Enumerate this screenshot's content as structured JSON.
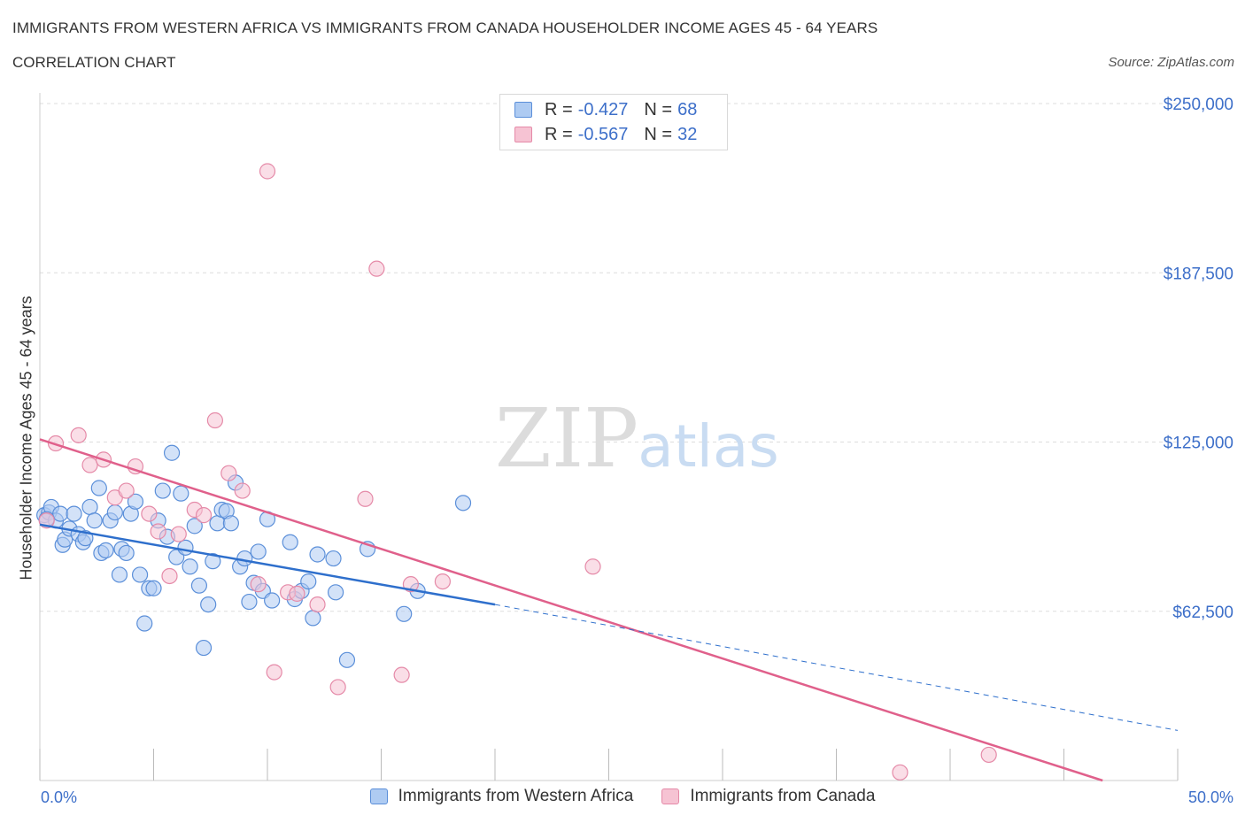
{
  "title": "IMMIGRANTS FROM WESTERN AFRICA VS IMMIGRANTS FROM CANADA HOUSEHOLDER INCOME AGES 45 - 64 YEARS",
  "subtitle": "CORRELATION CHART",
  "source": "Source: ZipAtlas.com",
  "watermark": {
    "zip": "ZIP",
    "atlas": "atlas"
  },
  "legend_stats": [
    {
      "r_label": "R =",
      "r_value": "-0.427",
      "n_label": "N =",
      "n_value": "68"
    },
    {
      "r_label": "R =",
      "r_value": "-0.567",
      "n_label": "N =",
      "n_value": "32"
    }
  ],
  "colors": {
    "blue_fill": "#aecbf2",
    "blue_stroke": "#5b8fd9",
    "blue_line": "#2e6fcc",
    "pink_fill": "#f6c3d3",
    "pink_stroke": "#e58aa8",
    "pink_line": "#e0608b",
    "tick_label": "#3d6fc9",
    "grid": "#dddddd"
  },
  "chart_data": {
    "type": "scatter",
    "title": "IMMIGRANTS FROM WESTERN AFRICA VS IMMIGRANTS FROM CANADA HOUSEHOLDER INCOME AGES 45 - 64 YEARS",
    "xlabel": "",
    "ylabel": "Householder Income Ages 45 - 64 years",
    "xlim": [
      0,
      50
    ],
    "ylim": [
      0,
      250000
    ],
    "x_tick_labels": [
      "0.0%",
      "50.0%"
    ],
    "y_ticks": [
      62500,
      125000,
      187500,
      250000
    ],
    "y_tick_labels": [
      "$62,500",
      "$125,000",
      "$187,500",
      "$250,000"
    ],
    "grid": true,
    "legend_position": "top-center",
    "series": [
      {
        "name": "Immigrants from Western Africa",
        "r": -0.427,
        "n": 68,
        "trend": {
          "x0": 0,
          "y0": 94500,
          "x1": 20,
          "y1": 65000,
          "dash_to_x": 50,
          "dash_to_y": 18500
        },
        "points": [
          [
            0.2,
            98000
          ],
          [
            0.4,
            99000
          ],
          [
            0.5,
            101000
          ],
          [
            0.7,
            96000
          ],
          [
            0.9,
            98500
          ],
          [
            1.0,
            87000
          ],
          [
            1.1,
            89000
          ],
          [
            1.3,
            93000
          ],
          [
            1.5,
            98500
          ],
          [
            1.7,
            91000
          ],
          [
            1.9,
            88000
          ],
          [
            2.0,
            89500
          ],
          [
            2.2,
            101000
          ],
          [
            2.4,
            96000
          ],
          [
            2.6,
            108000
          ],
          [
            2.7,
            84000
          ],
          [
            2.9,
            85000
          ],
          [
            3.1,
            96000
          ],
          [
            3.3,
            99000
          ],
          [
            3.5,
            76000
          ],
          [
            3.6,
            85500
          ],
          [
            3.8,
            84000
          ],
          [
            4.0,
            98500
          ],
          [
            4.2,
            103000
          ],
          [
            4.4,
            76000
          ],
          [
            4.6,
            58000
          ],
          [
            4.8,
            71000
          ],
          [
            5.0,
            71000
          ],
          [
            5.2,
            96000
          ],
          [
            5.4,
            107000
          ],
          [
            5.6,
            90000
          ],
          [
            5.8,
            121000
          ],
          [
            6.0,
            82500
          ],
          [
            6.2,
            106000
          ],
          [
            6.4,
            86000
          ],
          [
            6.6,
            79000
          ],
          [
            6.8,
            94000
          ],
          [
            7.0,
            72000
          ],
          [
            7.2,
            49000
          ],
          [
            7.4,
            65000
          ],
          [
            7.6,
            81000
          ],
          [
            7.8,
            95000
          ],
          [
            8.0,
            100000
          ],
          [
            8.2,
            99500
          ],
          [
            8.4,
            95000
          ],
          [
            8.6,
            110000
          ],
          [
            8.8,
            79000
          ],
          [
            9.0,
            82000
          ],
          [
            9.2,
            66000
          ],
          [
            9.4,
            73000
          ],
          [
            9.6,
            84500
          ],
          [
            9.8,
            70000
          ],
          [
            10.0,
            96500
          ],
          [
            10.2,
            66500
          ],
          [
            11.0,
            88000
          ],
          [
            11.2,
            67000
          ],
          [
            11.5,
            70000
          ],
          [
            11.8,
            73500
          ],
          [
            12.0,
            60000
          ],
          [
            12.2,
            83500
          ],
          [
            12.9,
            82000
          ],
          [
            13.0,
            69500
          ],
          [
            13.5,
            44500
          ],
          [
            14.4,
            85500
          ],
          [
            16.0,
            61500
          ],
          [
            16.6,
            70000
          ],
          [
            18.6,
            102500
          ],
          [
            0.3,
            96500
          ]
        ]
      },
      {
        "name": "Immigrants from Canada",
        "r": -0.567,
        "n": 32,
        "trend": {
          "x0": 0,
          "y0": 126000,
          "x1": 46.7,
          "y1": 0
        },
        "points": [
          [
            0.3,
            96000
          ],
          [
            0.7,
            124500
          ],
          [
            1.7,
            127500
          ],
          [
            2.2,
            116500
          ],
          [
            2.8,
            118500
          ],
          [
            3.3,
            104500
          ],
          [
            3.8,
            107000
          ],
          [
            4.2,
            116000
          ],
          [
            4.8,
            98500
          ],
          [
            5.2,
            92000
          ],
          [
            5.7,
            75500
          ],
          [
            6.1,
            91000
          ],
          [
            6.8,
            100000
          ],
          [
            7.2,
            98000
          ],
          [
            7.7,
            133000
          ],
          [
            8.3,
            113500
          ],
          [
            8.9,
            107000
          ],
          [
            9.6,
            72500
          ],
          [
            10.0,
            225000
          ],
          [
            10.3,
            40000
          ],
          [
            10.9,
            69500
          ],
          [
            11.3,
            69000
          ],
          [
            12.2,
            65000
          ],
          [
            13.1,
            34500
          ],
          [
            14.3,
            104000
          ],
          [
            14.8,
            189000
          ],
          [
            15.9,
            39000
          ],
          [
            16.3,
            72500
          ],
          [
            17.7,
            73500
          ],
          [
            24.3,
            79000
          ],
          [
            37.8,
            3000
          ],
          [
            41.7,
            9500
          ]
        ]
      }
    ]
  }
}
